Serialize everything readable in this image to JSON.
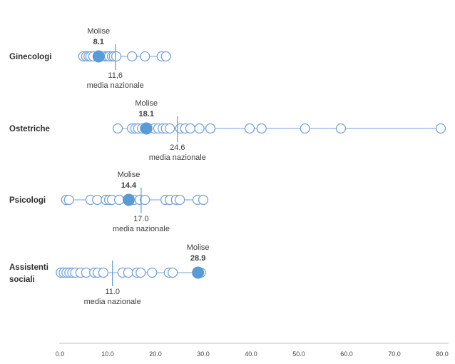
{
  "chart_data": {
    "type": "scatter",
    "title": "",
    "description": "Horizontal dot-plot of regional values per profession; open circles are regions, filled dot is Molise, vertical tick is the national mean",
    "highlight_series_name": "Molise",
    "mean_series_name": "media nazionale",
    "x_axis": {
      "min": 0,
      "max": 80,
      "ticks": [
        "0.0",
        "10.0",
        "20.0",
        "30.0",
        "40.0",
        "50.0",
        "60.0",
        "70.0",
        "80.0"
      ],
      "tick_values": [
        0,
        10,
        20,
        30,
        40,
        50,
        60,
        70,
        80
      ],
      "grid": false
    },
    "legend_position": "none",
    "rows": [
      {
        "label": "Ginecologi",
        "label_lines": [
          "Ginecologi"
        ],
        "region_values": [
          4.9,
          5.5,
          6.0,
          6.4,
          7.0,
          9.3,
          9.9,
          10.3,
          10.9,
          11.3,
          11.8,
          15.1,
          17.8,
          21.3,
          22.2
        ],
        "molise_value": 8.1,
        "molise_title": "Molise",
        "molise_label": "8.1",
        "mean_value": 11.6,
        "mean_label": "11,6",
        "mean_title": "media nazionale"
      },
      {
        "label": "Ostetriche",
        "label_lines": [
          "Ostetriche"
        ],
        "region_values": [
          12.1,
          15.1,
          15.8,
          16.4,
          17.2,
          17.8,
          19.7,
          20.6,
          21.5,
          22.2,
          23.0,
          25.2,
          26.2,
          27.3,
          29.2,
          31.5,
          39.7,
          42.2,
          51.3,
          58.8,
          79.7
        ],
        "molise_value": 18.1,
        "molise_title": "Molise",
        "molise_label": "18.1",
        "mean_value": 24.6,
        "mean_label": "24.6",
        "mean_title": "media nazionale"
      },
      {
        "label": "Psicologi",
        "label_lines": [
          "Psicologi"
        ],
        "region_values": [
          1.3,
          1.9,
          6.4,
          7.8,
          9.6,
          10.3,
          10.9,
          12.4,
          15.5,
          16.7,
          17.8,
          22.1,
          23.0,
          24.3,
          25.1,
          28.8,
          30.0
        ],
        "molise_value": 14.4,
        "molise_title": "Molise",
        "molise_label": "14.4",
        "mean_value": 17.0,
        "mean_label": "17.0",
        "mean_title": "media nazionale"
      },
      {
        "label": "Assistenti sociali",
        "label_lines": [
          "Assistenti",
          "sociali"
        ],
        "region_values": [
          0.2,
          0.8,
          1.4,
          2.0,
          2.6,
          3.2,
          4.3,
          5.5,
          7.2,
          7.9,
          9.1,
          13.1,
          14.3,
          16.1,
          16.9,
          19.3,
          22.8,
          23.6,
          29.5
        ],
        "molise_value": 28.9,
        "molise_title": "Molise",
        "molise_label": "28.9",
        "mean_value": 11.0,
        "mean_label": "11.0",
        "mean_title": "media nazionale"
      }
    ],
    "colors": {
      "marker_stroke": "#74a3d8",
      "row_line": "#74a3d8",
      "molise_fill": "#5b9bd5",
      "mean_line": "#5b9bd5",
      "axis_line": "#bfbfbf",
      "text": "#3d3d3d"
    }
  }
}
